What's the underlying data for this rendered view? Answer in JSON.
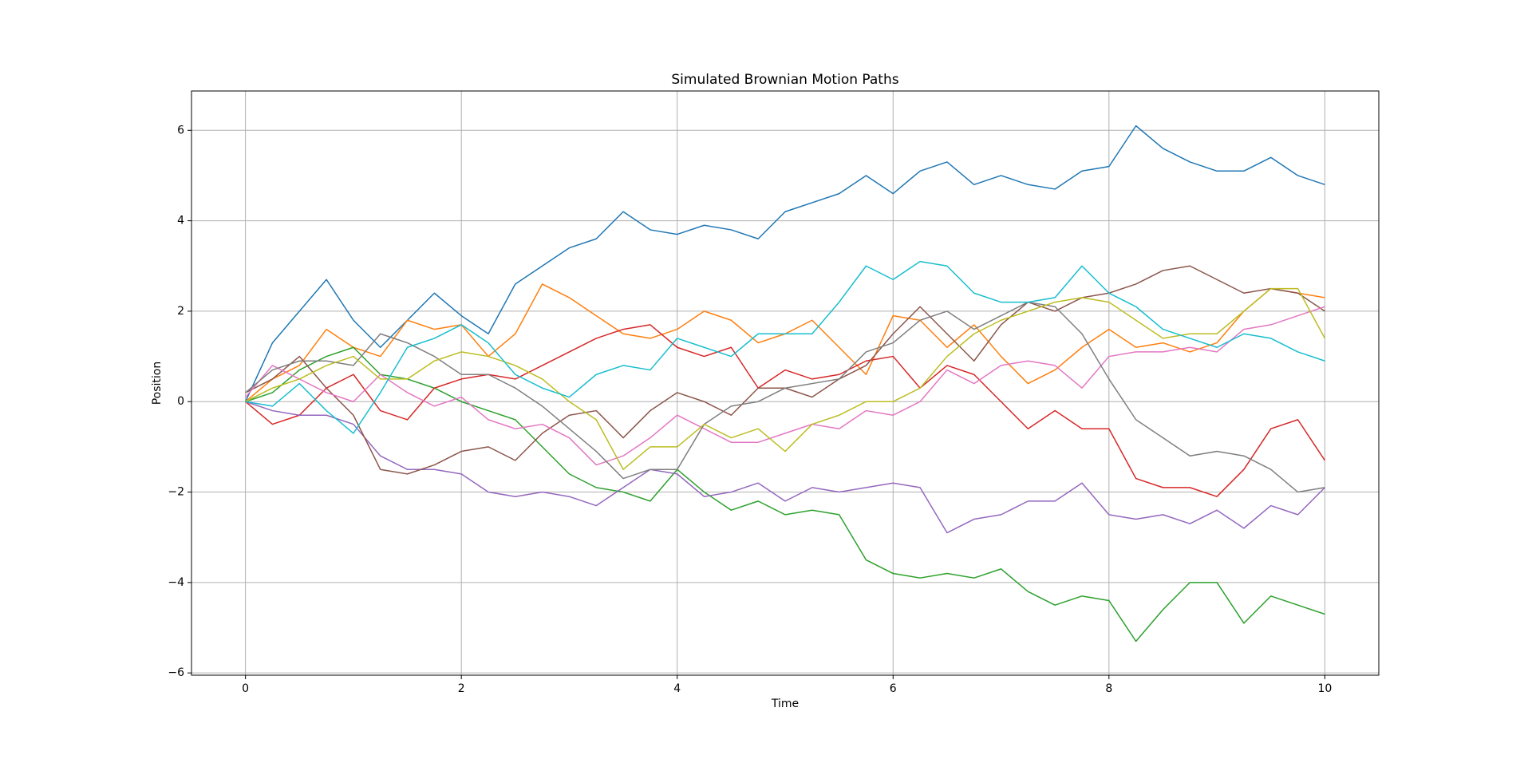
{
  "chart_data": {
    "type": "line",
    "title": "Simulated Brownian Motion Paths",
    "x_label": "Time",
    "y_label": "Position",
    "x": [
      0,
      0.25,
      0.5,
      0.75,
      1,
      1.25,
      1.5,
      1.75,
      2,
      2.25,
      2.5,
      2.75,
      3,
      3.25,
      3.5,
      3.75,
      4,
      4.25,
      4.5,
      4.75,
      5,
      5.25,
      5.5,
      5.75,
      6,
      6.25,
      6.5,
      6.75,
      7,
      7.25,
      7.5,
      7.75,
      8,
      8.25,
      8.5,
      8.75,
      9,
      9.25,
      9.5,
      9.75,
      10
    ],
    "series": [
      {
        "color": "#1f77b4",
        "values": [
          0,
          1.3,
          2.0,
          2.7,
          1.8,
          1.2,
          1.8,
          2.4,
          1.9,
          1.5,
          2.6,
          3.0,
          3.4,
          3.6,
          4.2,
          3.8,
          3.7,
          3.9,
          3.8,
          3.6,
          4.2,
          4.4,
          4.6,
          5.0,
          4.6,
          5.1,
          5.3,
          4.8,
          5.0,
          4.8,
          4.7,
          5.1,
          5.2,
          6.1,
          5.6,
          5.3,
          5.1,
          5.1,
          5.4,
          5.0,
          4.8
        ]
      },
      {
        "color": "#ff7f0e",
        "values": [
          0,
          0.5,
          0.8,
          1.6,
          1.2,
          1.0,
          1.8,
          1.6,
          1.7,
          1.0,
          1.5,
          2.6,
          2.3,
          1.9,
          1.5,
          1.4,
          1.6,
          2.0,
          1.8,
          1.3,
          1.5,
          1.8,
          1.2,
          0.6,
          1.9,
          1.8,
          1.2,
          1.7,
          1.0,
          0.4,
          0.7,
          1.2,
          1.6,
          1.2,
          1.3,
          1.1,
          1.3,
          2.0,
          2.5,
          2.4,
          2.3
        ]
      },
      {
        "color": "#2ca02c",
        "values": [
          0,
          0.2,
          0.7,
          1.0,
          1.2,
          0.6,
          0.5,
          0.3,
          0.0,
          -0.2,
          -0.4,
          -1.0,
          -1.6,
          -1.9,
          -2.0,
          -2.2,
          -1.5,
          -2.0,
          -2.4,
          -2.2,
          -2.5,
          -2.4,
          -2.5,
          -3.5,
          -3.8,
          -3.9,
          -3.8,
          -3.9,
          -3.7,
          -4.2,
          -4.5,
          -4.3,
          -4.4,
          -5.3,
          -4.6,
          -4.0,
          -4.0,
          -4.9,
          -4.3,
          -4.5,
          -4.7
        ]
      },
      {
        "color": "#d62728",
        "values": [
          0,
          -0.5,
          -0.3,
          0.3,
          0.6,
          -0.2,
          -0.4,
          0.3,
          0.5,
          0.6,
          0.5,
          0.8,
          1.1,
          1.4,
          1.6,
          1.7,
          1.2,
          1.0,
          1.2,
          0.3,
          0.7,
          0.5,
          0.6,
          0.9,
          1.0,
          0.3,
          0.8,
          0.6,
          0.0,
          -0.6,
          -0.2,
          -0.6,
          -0.6,
          -1.7,
          -1.9,
          -1.9,
          -2.1,
          -1.5,
          -0.6,
          -0.4,
          -1.3
        ]
      },
      {
        "color": "#9467bd",
        "values": [
          0,
          -0.2,
          -0.3,
          -0.3,
          -0.5,
          -1.2,
          -1.5,
          -1.5,
          -1.6,
          -2.0,
          -2.1,
          -2.0,
          -2.1,
          -2.3,
          -1.9,
          -1.5,
          -1.6,
          -2.1,
          -2.0,
          -1.8,
          -2.2,
          -1.9,
          -2.0,
          -1.9,
          -1.8,
          -1.9,
          -2.9,
          -2.6,
          -2.5,
          -2.2,
          -2.2,
          -1.8,
          -2.5,
          -2.6,
          -2.5,
          -2.7,
          -2.4,
          -2.8,
          -2.3,
          -2.5,
          -1.9
        ]
      },
      {
        "color": "#8c564b",
        "values": [
          0.2,
          0.5,
          1.0,
          0.3,
          -0.3,
          -1.5,
          -1.6,
          -1.4,
          -1.1,
          -1.0,
          -1.3,
          -0.7,
          -0.3,
          -0.2,
          -0.8,
          -0.2,
          0.2,
          0.0,
          -0.3,
          0.3,
          0.3,
          0.1,
          0.5,
          0.8,
          1.5,
          2.1,
          1.5,
          0.9,
          1.7,
          2.2,
          2.0,
          2.3,
          2.4,
          2.6,
          2.9,
          3.0,
          2.7,
          2.4,
          2.5,
          2.4,
          2.0
        ]
      },
      {
        "color": "#e377c2",
        "values": [
          0.1,
          0.8,
          0.5,
          0.2,
          0.0,
          0.6,
          0.2,
          -0.1,
          0.1,
          -0.4,
          -0.6,
          -0.5,
          -0.8,
          -1.4,
          -1.2,
          -0.8,
          -0.3,
          -0.6,
          -0.9,
          -0.9,
          -0.7,
          -0.5,
          -0.6,
          -0.2,
          -0.3,
          0.0,
          0.7,
          0.4,
          0.8,
          0.9,
          0.8,
          0.3,
          1.0,
          1.1,
          1.1,
          1.2,
          1.1,
          1.6,
          1.7,
          1.9,
          2.1
        ]
      },
      {
        "color": "#7f7f7f",
        "values": [
          0.2,
          0.7,
          0.9,
          0.9,
          0.8,
          1.5,
          1.3,
          1.0,
          0.6,
          0.6,
          0.3,
          -0.1,
          -0.6,
          -1.1,
          -1.7,
          -1.5,
          -1.5,
          -0.5,
          -0.1,
          0.0,
          0.3,
          0.4,
          0.5,
          1.1,
          1.3,
          1.8,
          2.0,
          1.6,
          1.9,
          2.2,
          2.1,
          1.5,
          0.5,
          -0.4,
          -0.8,
          -1.2,
          -1.1,
          -1.2,
          -1.5,
          -2.0,
          -1.9
        ]
      },
      {
        "color": "#bcbd22",
        "values": [
          0,
          0.3,
          0.5,
          0.8,
          1.0,
          0.5,
          0.5,
          0.9,
          1.1,
          1.0,
          0.8,
          0.5,
          0.0,
          -0.4,
          -1.5,
          -1.0,
          -1.0,
          -0.5,
          -0.8,
          -0.6,
          -1.1,
          -0.5,
          -0.3,
          0,
          0,
          0.3,
          1.0,
          1.5,
          1.8,
          2.0,
          2.2,
          2.3,
          2.2,
          1.8,
          1.4,
          1.5,
          1.5,
          2.0,
          2.5,
          2.5,
          1.4
        ]
      },
      {
        "color": "#17becf",
        "values": [
          0,
          -0.1,
          0.4,
          -0.2,
          -0.7,
          0.2,
          1.2,
          1.4,
          1.7,
          1.3,
          0.6,
          0.3,
          0.1,
          0.6,
          0.8,
          0.7,
          1.4,
          1.2,
          1.0,
          1.5,
          1.5,
          1.5,
          2.2,
          3.0,
          2.7,
          3.1,
          3.0,
          2.4,
          2.2,
          2.2,
          2.3,
          3.0,
          2.4,
          2.1,
          1.6,
          1.4,
          1.2,
          1.5,
          1.4,
          1.1,
          0.9
        ]
      }
    ],
    "xlim": [
      -0.5,
      10.5
    ],
    "ylim": [
      -6.05,
      6.87
    ],
    "xticks": [
      0,
      2,
      4,
      6,
      8,
      10
    ],
    "yticks": [
      {
        "value": -6,
        "label": "−6"
      },
      {
        "value": -4,
        "label": "−4"
      },
      {
        "value": -2,
        "label": "−2"
      },
      0,
      2,
      4,
      6
    ],
    "grid": true
  }
}
